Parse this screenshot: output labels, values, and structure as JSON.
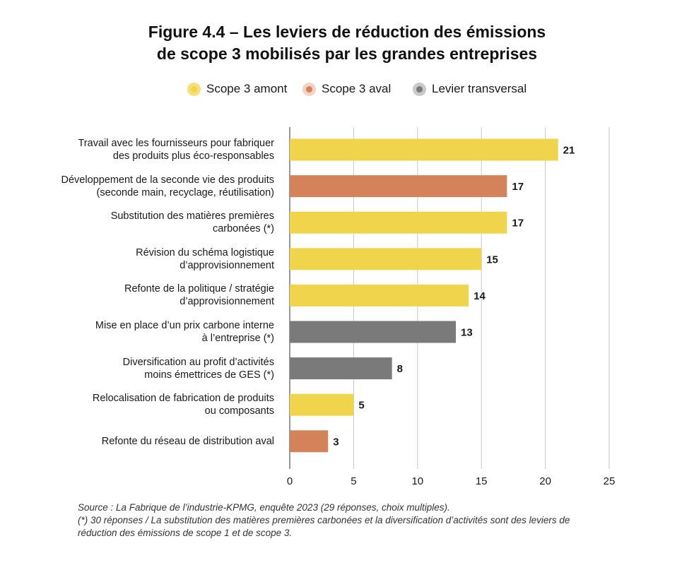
{
  "title_line1": "Figure 4.4 – Les leviers de réduction des émissions",
  "title_line2": "de scope 3 mobilisés par les grandes entreprises",
  "legend": [
    {
      "label": "Scope 3 amont",
      "color": "#f0d44c"
    },
    {
      "label": "Scope 3 aval",
      "color": "#d4825a"
    },
    {
      "label": "Levier transversal",
      "color": "#7a7a7a"
    }
  ],
  "chart_data": {
    "type": "bar",
    "orientation": "horizontal",
    "categories": [
      [
        "Travail avec les fournisseurs pour fabriquer",
        "des produits plus éco-responsables"
      ],
      [
        "Développement de la seconde vie des produits",
        "(seconde main, recyclage, réutilisation)"
      ],
      [
        "Substitution des matières premières",
        "carbonées (*)"
      ],
      [
        "Révision du schéma logistique",
        "d’approvisionnement"
      ],
      [
        "Refonte de la politique / stratégie",
        "d’approvisionnement"
      ],
      [
        "Mise en place d’un prix carbone interne",
        "à l’entreprise (*)"
      ],
      [
        "Diversification au profit d’activités",
        "moins émettrices de GES (*)"
      ],
      [
        "Relocalisation de fabrication de produits",
        "ou composants"
      ],
      [
        "Refonte du réseau de distribution aval"
      ]
    ],
    "values": [
      21,
      17,
      17,
      15,
      14,
      13,
      8,
      5,
      3
    ],
    "groups": [
      "Scope 3 amont",
      "Scope 3 aval",
      "Scope 3 amont",
      "Scope 3 amont",
      "Scope 3 amont",
      "Levier transversal",
      "Levier transversal",
      "Scope 3 amont",
      "Scope 3 aval"
    ],
    "xlim": [
      0,
      25
    ],
    "xticks": [
      0,
      5,
      10,
      15,
      20,
      25
    ],
    "grid": true,
    "legend_position": "top"
  },
  "source": {
    "line1": "Source : La Fabrique de l’industrie-KPMG, enquête 2023 (29 réponses, choix multiples).",
    "line2": "(*) 30 réponses / La substitution des matières premières carbonées et la diversification d’activités sont des leviers de",
    "line3": "réduction des émissions de scope 1 et de scope 3."
  }
}
